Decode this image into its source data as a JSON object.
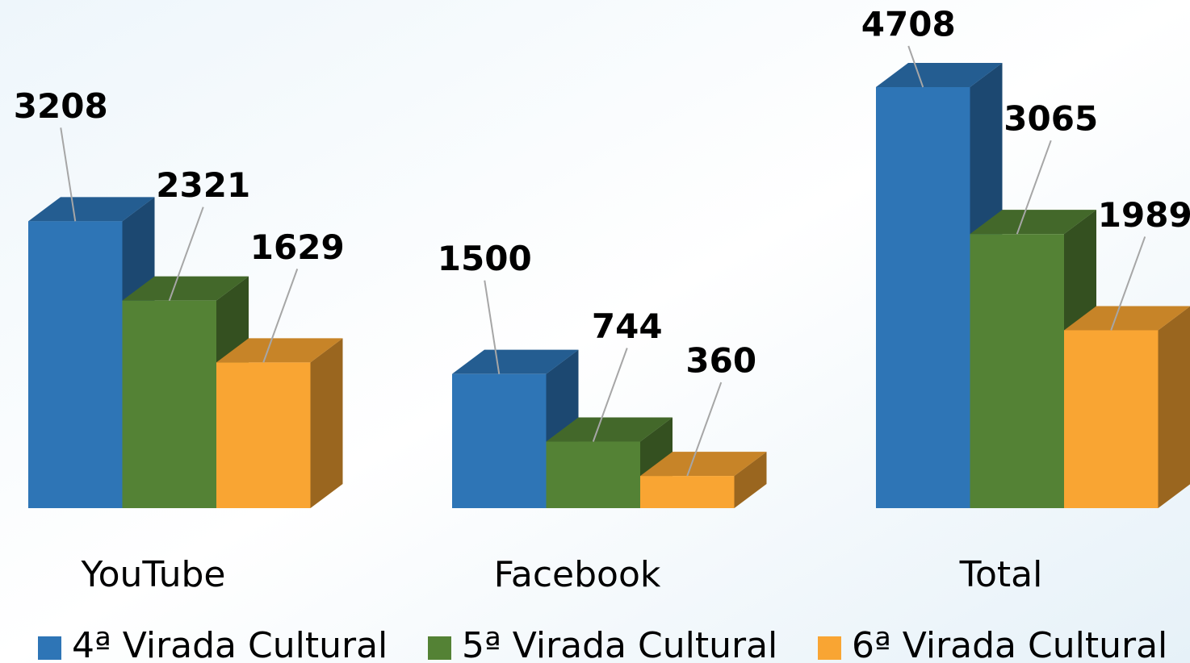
{
  "chart_data": {
    "type": "bar3d",
    "categories": [
      "YouTube",
      "Facebook",
      "Total"
    ],
    "series": [
      {
        "name": "4ª Virada Cultural",
        "color": "#2e75b6",
        "values": [
          3208,
          1500,
          4708
        ]
      },
      {
        "name": "5ª Virada Cultural",
        "color": "#548235",
        "values": [
          2321,
          744,
          3065
        ]
      },
      {
        "name": "6ª Virada Cultural",
        "color": "#f9a533",
        "values": [
          1629,
          360,
          1989
        ]
      }
    ],
    "legend": "bottom"
  }
}
